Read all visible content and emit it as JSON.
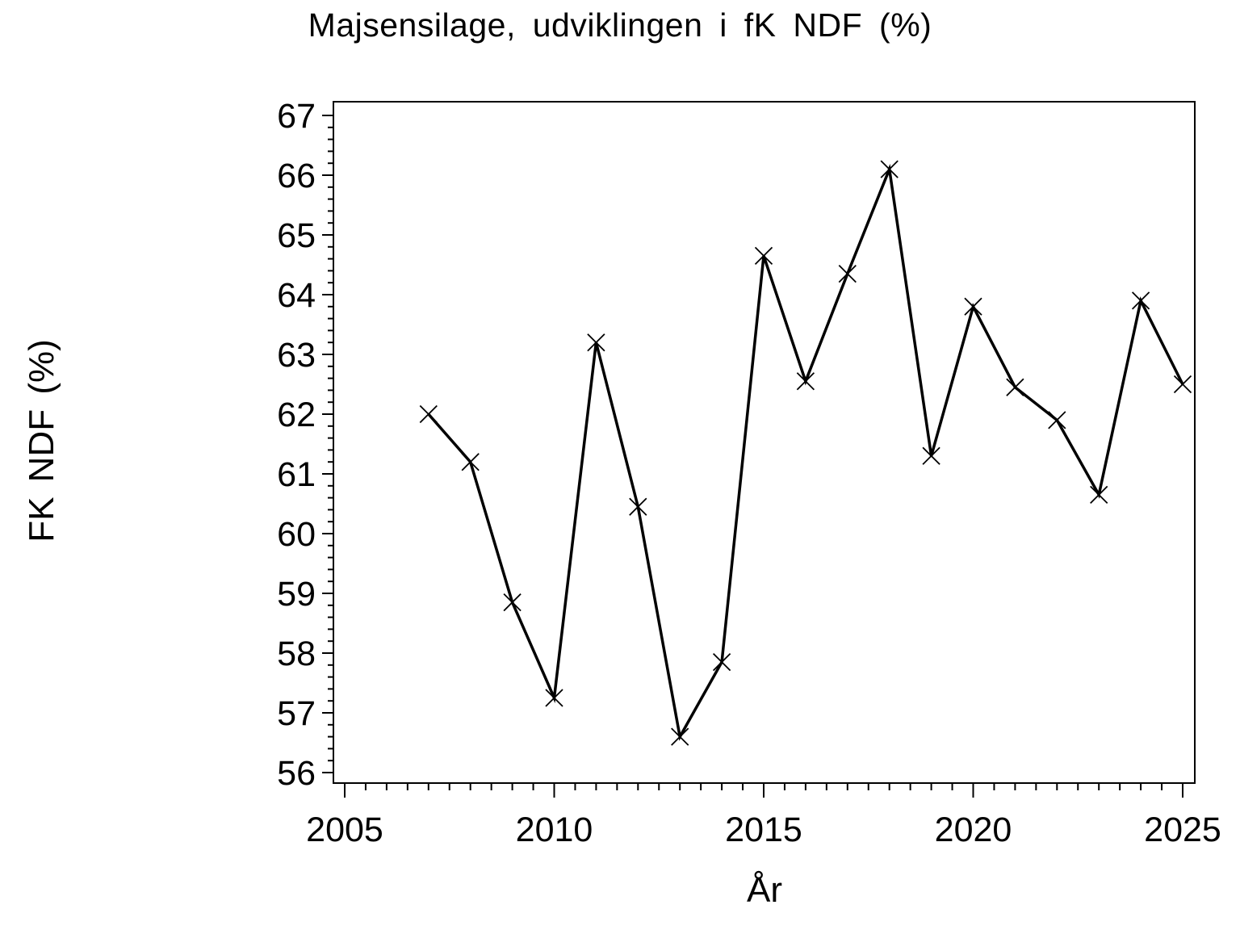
{
  "title": "Majsensilage,  udviklingen  i  fK  NDF  (%)",
  "chart_data": {
    "type": "line",
    "title": "Majsensilage, udviklingen i fK NDF (%)",
    "xlabel": "År",
    "ylabel": "FK NDF (%)",
    "series": [
      {
        "name": "fK NDF",
        "x": [
          2007,
          2008,
          2009,
          2010,
          2011,
          2012,
          2013,
          2014,
          2015,
          2016,
          2017,
          2018,
          2019,
          2020,
          2021,
          2022,
          2023,
          2024,
          2025
        ],
        "y": [
          62.0,
          61.2,
          58.85,
          57.25,
          63.2,
          60.45,
          56.6,
          57.85,
          64.65,
          62.55,
          64.35,
          66.1,
          61.3,
          63.8,
          62.45,
          61.9,
          60.65,
          63.9,
          62.5
        ]
      }
    ],
    "x_ticks": [
      2005,
      2010,
      2015,
      2020,
      2025
    ],
    "y_ticks": [
      56,
      57,
      58,
      59,
      60,
      61,
      62,
      63,
      64,
      65,
      66,
      67
    ],
    "x_minor_step": 0.5,
    "y_minor_step": 0.2,
    "xlim": [
      2004.7,
      2025.3
    ],
    "ylim": [
      55.8,
      67.2
    ],
    "grid": false,
    "legend": null,
    "marker": "x",
    "line_color": "#000000",
    "marker_color": "#000000",
    "frame_color": "#000000",
    "background_color": "#ffffff"
  }
}
